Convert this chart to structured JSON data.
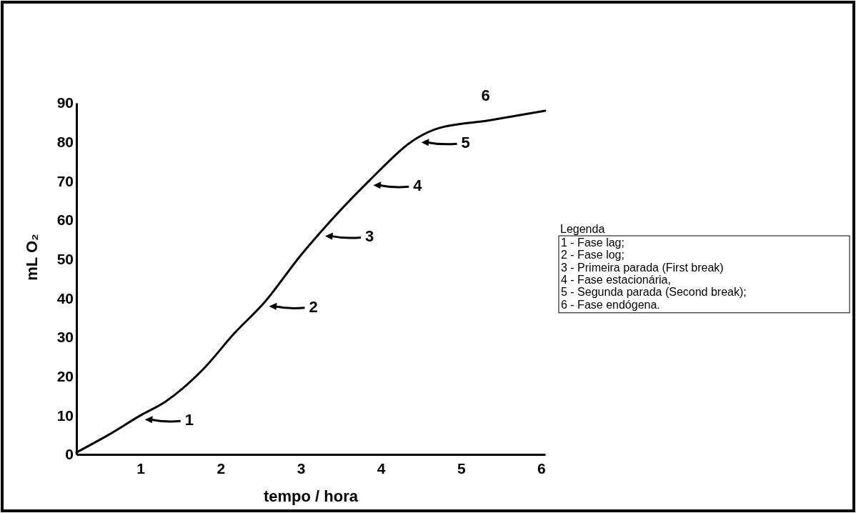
{
  "chart_data": {
    "type": "line",
    "xlabel": "tempo / hora",
    "ylabel": "mL O₂",
    "x": [
      0.2,
      0.6,
      1.0,
      1.31,
      1.79,
      2.17,
      2.55,
      3.0,
      3.25,
      3.85,
      4.45,
      4.7,
      5.35,
      6.05
    ],
    "series": [
      {
        "color": "#000000",
        "values": [
          0.5,
          5,
          10,
          13.5,
          22,
          31,
          39,
          51,
          57,
          70,
          81,
          83.4,
          85.5,
          88
        ]
      }
    ],
    "xlim": [
      0.2,
      6.05
    ],
    "xticks": [
      1,
      2,
      3,
      4,
      5,
      6
    ],
    "ylim": [
      0,
      90
    ],
    "yticks": [
      0,
      10,
      20,
      30,
      40,
      50,
      60,
      70,
      80,
      90
    ],
    "grid": false,
    "marker": "none",
    "line_style": "solid",
    "annotations": [
      {
        "text": "1",
        "x": 1.0,
        "y": 10
      },
      {
        "text": "2",
        "x": 2.55,
        "y": 39
      },
      {
        "text": "3",
        "x": 3.25,
        "y": 57
      },
      {
        "text": "4",
        "x": 3.85,
        "y": 70
      },
      {
        "text": "5",
        "x": 4.45,
        "y": 81
      },
      {
        "text": "6",
        "x": 5.35,
        "y": 85.5
      },
      "Legenda",
      "1 - Fase lag;",
      "2 - Fase log;",
      "3 - Primeira parada (First break)",
      "4 - Fase estacionária,",
      "5 - Segunda parada (Second break);",
      "6 - Fase endógena."
    ]
  }
}
